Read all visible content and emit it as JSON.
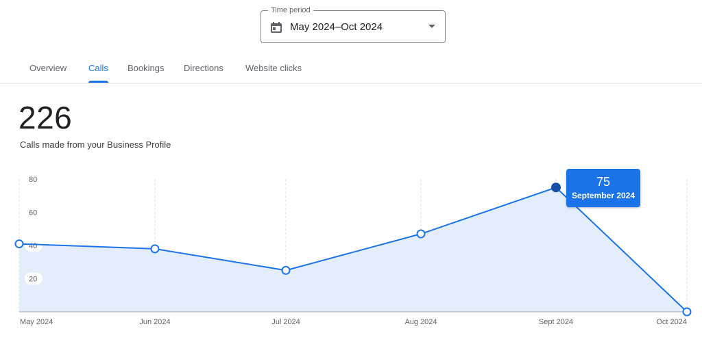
{
  "time_period": {
    "label": "Time period",
    "value": "May 2024–Oct 2024",
    "icon": "calendar-icon"
  },
  "tabs": [
    {
      "label": "Overview",
      "active": false
    },
    {
      "label": "Calls",
      "active": true
    },
    {
      "label": "Bookings",
      "active": false
    },
    {
      "label": "Directions",
      "active": false
    },
    {
      "label": "Website clicks",
      "active": false
    }
  ],
  "summary": {
    "total": "226",
    "caption": "Calls made from your Business Profile"
  },
  "tooltip": {
    "value": "75",
    "label": "September 2024"
  },
  "colors": {
    "accent": "#1a73e8",
    "line": "#1a73e8",
    "area": "#e3edfc",
    "highlight_point": "#174ea6"
  },
  "chart_data": {
    "type": "area",
    "x": [
      "May 2024",
      "Jun 2024",
      "Jul 2024",
      "Aug 2024",
      "Sept 2024",
      "Oct 2024"
    ],
    "series": [
      {
        "values": [
          41,
          38,
          25,
          47,
          75,
          0
        ]
      }
    ],
    "yticks": [
      20,
      40,
      60,
      80
    ],
    "ylim": [
      0,
      80
    ],
    "highlighted_index": 4,
    "grid": "vertical dashed"
  }
}
